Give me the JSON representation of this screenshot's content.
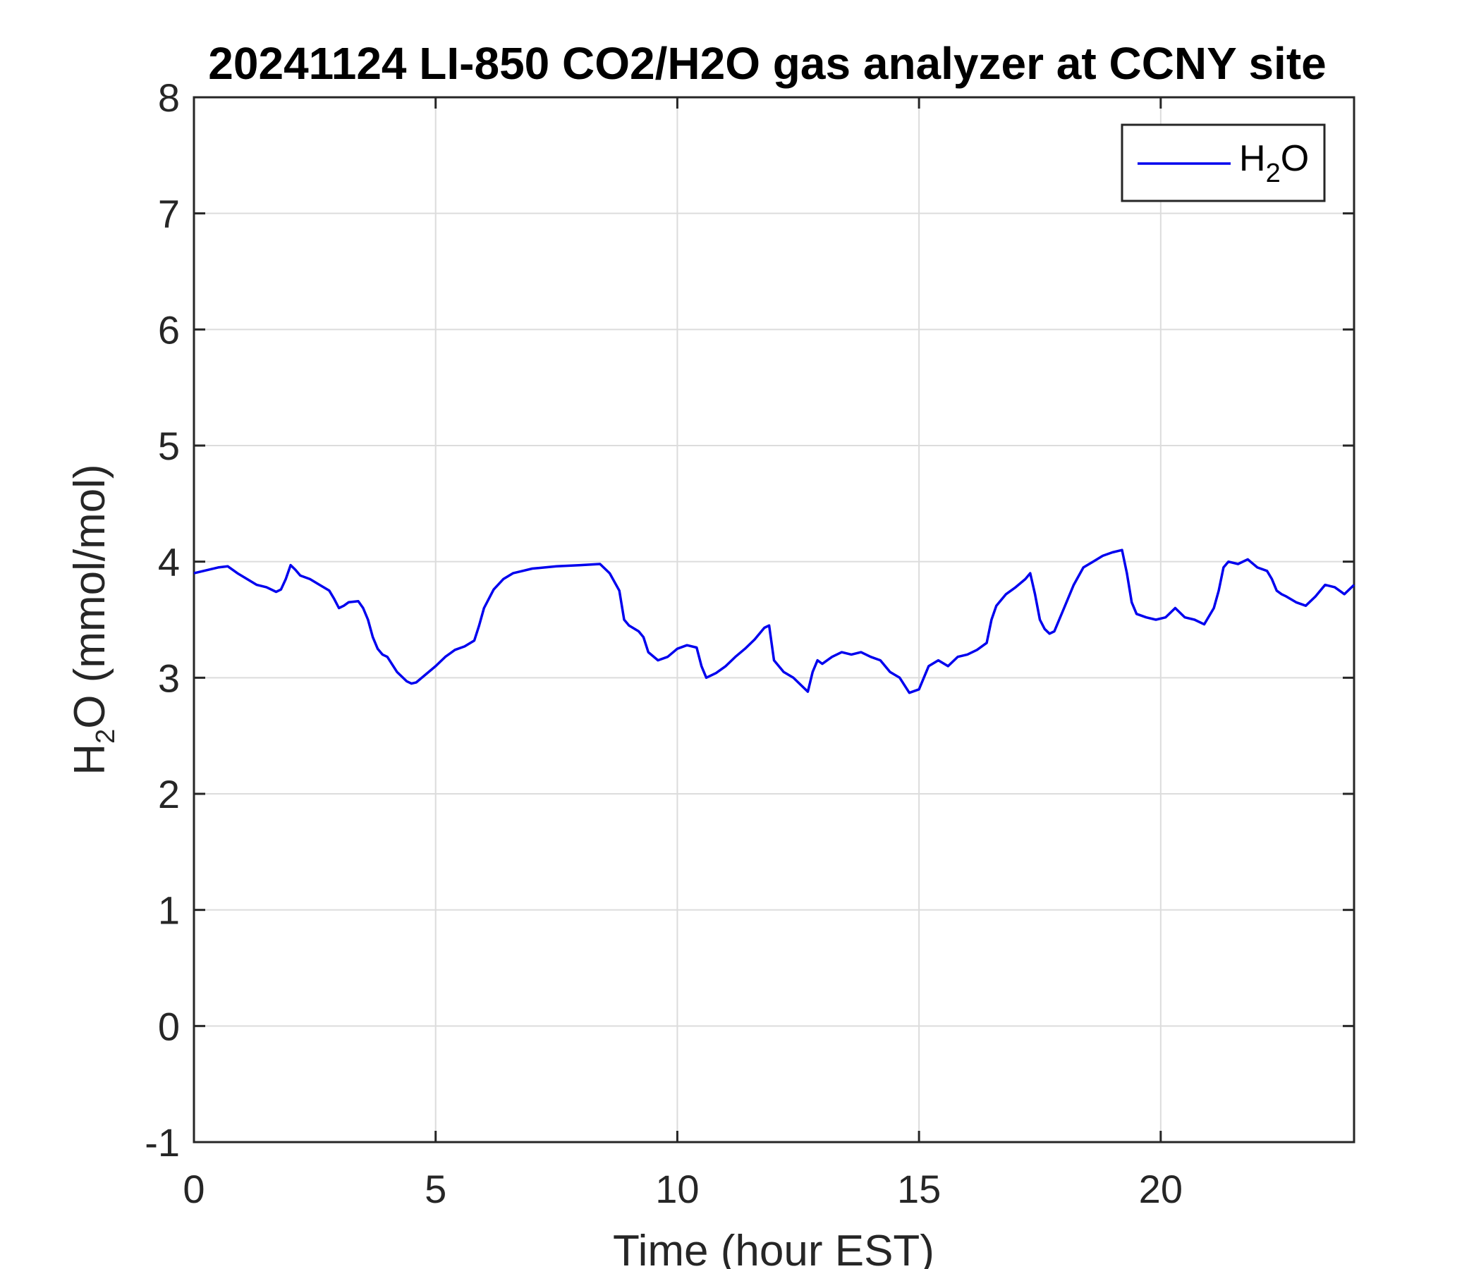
{
  "chart_data": {
    "type": "line",
    "title": "20241124 LI-850 CO2/H2O gas analyzer at CCNY site",
    "xlabel": "Time (hour EST)",
    "ylabel": {
      "main": "H",
      "subscript": "2",
      "rest": "O (mmol/mol)"
    },
    "xlim": [
      0,
      24
    ],
    "ylim": [
      -1,
      8
    ],
    "xticks": [
      0,
      5,
      10,
      15,
      20
    ],
    "xtick_labels": [
      "0",
      "5",
      "10",
      "15",
      "20"
    ],
    "yticks": [
      -1,
      0,
      1,
      2,
      3,
      4,
      5,
      6,
      7,
      8
    ],
    "ytick_labels": [
      "-1",
      "0",
      "1",
      "2",
      "3",
      "4",
      "5",
      "6",
      "7",
      "8"
    ],
    "grid": true,
    "legend": {
      "position": "top-right",
      "entries": [
        {
          "main": "H",
          "subscript": "2",
          "rest": "O"
        }
      ]
    },
    "series": [
      {
        "name": "H2O",
        "color": "#0000ee",
        "x": [
          0,
          0.3,
          0.5,
          0.7,
          0.9,
          1.1,
          1.3,
          1.5,
          1.7,
          1.8,
          1.9,
          2.0,
          2.1,
          2.2,
          2.4,
          2.6,
          2.8,
          2.9,
          3.0,
          3.1,
          3.2,
          3.4,
          3.5,
          3.6,
          3.7,
          3.8,
          3.9,
          4.0,
          4.2,
          4.4,
          4.5,
          4.6,
          4.8,
          5.0,
          5.2,
          5.4,
          5.6,
          5.8,
          5.9,
          6.0,
          6.2,
          6.4,
          6.6,
          6.8,
          7.0,
          7.5,
          8.0,
          8.4,
          8.6,
          8.8,
          8.9,
          9.0,
          9.2,
          9.3,
          9.4,
          9.6,
          9.8,
          10.0,
          10.2,
          10.4,
          10.5,
          10.6,
          10.8,
          11.0,
          11.2,
          11.4,
          11.6,
          11.8,
          11.9,
          12.0,
          12.2,
          12.4,
          12.6,
          12.7,
          12.8,
          12.9,
          13.0,
          13.2,
          13.4,
          13.6,
          13.8,
          14.0,
          14.2,
          14.4,
          14.6,
          14.8,
          15.0,
          15.2,
          15.4,
          15.6,
          15.8,
          16.0,
          16.2,
          16.4,
          16.5,
          16.6,
          16.8,
          17.0,
          17.2,
          17.3,
          17.4,
          17.5,
          17.6,
          17.7,
          17.8,
          18.0,
          18.2,
          18.4,
          18.6,
          18.8,
          19.0,
          19.2,
          19.3,
          19.4,
          19.5,
          19.7,
          19.9,
          20.1,
          20.3,
          20.5,
          20.7,
          20.9,
          21.1,
          21.2,
          21.3,
          21.4,
          21.6,
          21.8,
          22.0,
          22.2,
          22.3,
          22.4,
          22.5,
          22.6,
          22.8,
          23.0,
          23.2,
          23.4,
          23.6,
          23.8,
          24.0
        ],
        "y": [
          3.9,
          3.93,
          3.95,
          3.96,
          3.9,
          3.85,
          3.8,
          3.78,
          3.74,
          3.76,
          3.85,
          3.97,
          3.93,
          3.88,
          3.85,
          3.8,
          3.75,
          3.68,
          3.6,
          3.62,
          3.65,
          3.66,
          3.6,
          3.5,
          3.35,
          3.25,
          3.2,
          3.18,
          3.05,
          2.97,
          2.95,
          2.96,
          3.03,
          3.1,
          3.18,
          3.24,
          3.27,
          3.32,
          3.45,
          3.6,
          3.76,
          3.85,
          3.9,
          3.92,
          3.94,
          3.96,
          3.97,
          3.98,
          3.9,
          3.75,
          3.5,
          3.45,
          3.4,
          3.35,
          3.22,
          3.15,
          3.18,
          3.25,
          3.28,
          3.26,
          3.1,
          3.0,
          3.04,
          3.1,
          3.18,
          3.25,
          3.33,
          3.43,
          3.45,
          3.15,
          3.05,
          3.0,
          2.92,
          2.88,
          3.05,
          3.15,
          3.12,
          3.18,
          3.22,
          3.2,
          3.22,
          3.18,
          3.15,
          3.05,
          3.0,
          2.87,
          2.9,
          3.1,
          3.15,
          3.1,
          3.18,
          3.2,
          3.24,
          3.3,
          3.5,
          3.62,
          3.72,
          3.78,
          3.85,
          3.9,
          3.72,
          3.5,
          3.42,
          3.38,
          3.4,
          3.6,
          3.8,
          3.95,
          4.0,
          4.05,
          4.08,
          4.1,
          3.9,
          3.65,
          3.55,
          3.52,
          3.5,
          3.52,
          3.6,
          3.52,
          3.5,
          3.46,
          3.6,
          3.75,
          3.95,
          4.0,
          3.98,
          4.02,
          3.95,
          3.92,
          3.85,
          3.75,
          3.72,
          3.7,
          3.65,
          3.62,
          3.7,
          3.8,
          3.78,
          3.72,
          3.8
        ]
      }
    ]
  }
}
